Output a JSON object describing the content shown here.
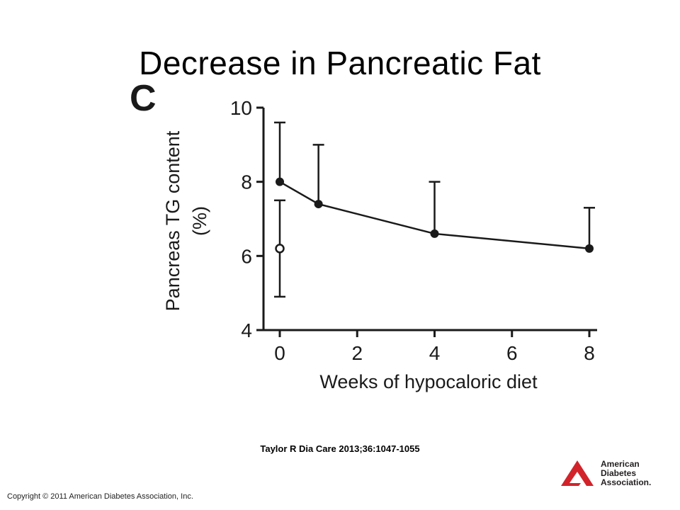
{
  "slide": {
    "title": "Decrease in Pancreatic Fat",
    "citation": "Taylor R Dia Care 2013;36:1047-1055",
    "copyright": "Copyright © 2011 American Diabetes Association, Inc.",
    "logo_text": [
      "American",
      "Diabetes",
      "Association."
    ],
    "logo_color": "#d2232a"
  },
  "chart_data": {
    "type": "line",
    "panel_label": "C",
    "xlabel": "Weeks of hypocaloric diet",
    "ylabel": [
      "Pancreas TG content",
      "(%)"
    ],
    "xlim": [
      0,
      8
    ],
    "ylim": [
      4,
      10
    ],
    "xticks": [
      0,
      2,
      4,
      6,
      8
    ],
    "yticks": [
      4,
      6,
      8,
      10
    ],
    "grid": false,
    "series": [
      {
        "marker": "filled",
        "x": [
          0,
          1,
          4,
          8
        ],
        "y": [
          8.0,
          7.4,
          6.6,
          6.2
        ],
        "error_upper": [
          9.6,
          9.0,
          8.0,
          7.3
        ],
        "connected": true
      },
      {
        "marker": "open",
        "x": [
          0
        ],
        "y": [
          6.2
        ],
        "error_upper": [
          7.5
        ],
        "error_lower": [
          4.9
        ],
        "connected": false
      }
    ]
  }
}
